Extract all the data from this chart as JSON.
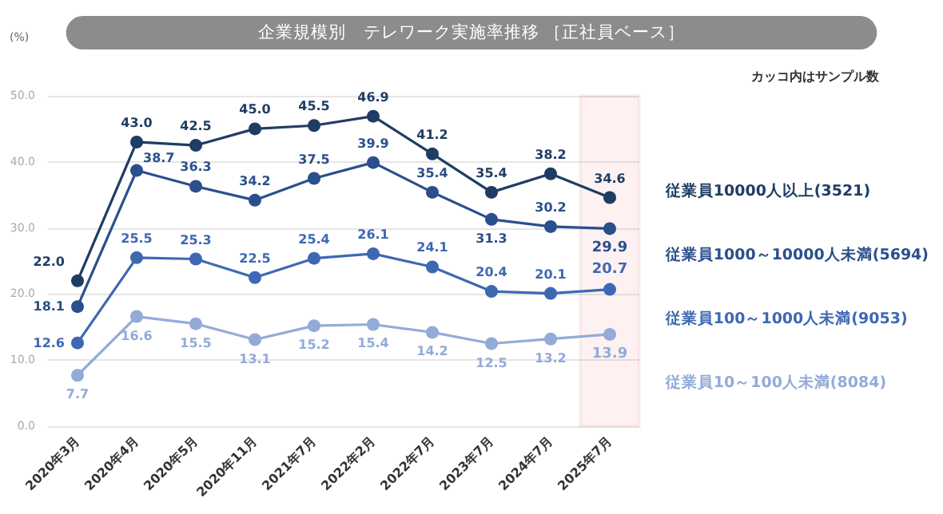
{
  "chart_data": {
    "type": "line",
    "title": "企業規模別　テレワーク実施率推移 ［正社員ベース］",
    "ylabel": "(%)",
    "annotations": [
      "カッコ内はサンプル数"
    ],
    "categories": [
      "2020年3月",
      "2020年4月",
      "2020年5月",
      "2020年11月",
      "2021年7月",
      "2022年2月",
      "2022年7月",
      "2023年7月",
      "2024年7月",
      "2025年7月"
    ],
    "series": [
      {
        "name": "従業員10000人以上(3521)",
        "color": "#1f3d63",
        "values": [
          22.0,
          43.0,
          42.5,
          45.0,
          45.5,
          46.9,
          41.2,
          35.4,
          38.2,
          34.6
        ],
        "value_labels": [
          "22.0",
          "43.0",
          "42.5",
          "45.0",
          "45.5",
          "46.9",
          "41.2",
          "35.4",
          "38.2",
          "34.6"
        ]
      },
      {
        "name": "従業員1000～10000人未満(5694)",
        "color": "#2b4f8c",
        "values": [
          18.1,
          38.7,
          36.3,
          34.2,
          37.5,
          39.9,
          35.4,
          31.3,
          30.2,
          29.9
        ],
        "value_labels": [
          "18.1",
          "38.7",
          "36.3",
          "34.2",
          "37.5",
          "39.9",
          "35.4",
          "31.3",
          "30.2",
          "29.9"
        ]
      },
      {
        "name": "従業員100～1000人未満(9053)",
        "color": "#3e68b2",
        "values": [
          12.6,
          25.5,
          25.3,
          22.5,
          25.4,
          26.1,
          24.1,
          20.4,
          20.1,
          20.7
        ],
        "value_labels": [
          "12.6",
          "25.5",
          "25.3",
          "22.5",
          "25.4",
          "26.1",
          "24.1",
          "20.4",
          "20.1",
          "20.7"
        ]
      },
      {
        "name": "従業員10～100人未満(8084)",
        "color": "#93abd9",
        "values": [
          7.7,
          16.6,
          15.5,
          13.1,
          15.2,
          15.4,
          14.2,
          12.5,
          13.2,
          13.9
        ],
        "value_labels": [
          "7.7",
          "16.6",
          "15.5",
          "13.1",
          "15.2",
          "15.4",
          "14.2",
          "12.5",
          "13.2",
          "13.9"
        ]
      }
    ],
    "ylim": [
      0,
      50
    ],
    "yticks": [
      {
        "value": 0,
        "label": "0.0"
      },
      {
        "value": 10,
        "label": "10.0"
      },
      {
        "value": 20,
        "label": "20.0"
      },
      {
        "value": 30,
        "label": "30.0"
      },
      {
        "value": 40,
        "label": "40.0"
      },
      {
        "value": 50,
        "label": "50.0"
      }
    ],
    "bands": [
      {
        "axis": "x",
        "from": "2025年7月",
        "to": "2025年7月",
        "color": "#e8505f"
      }
    ],
    "grid": "y",
    "legend": "right",
    "marker": "circle",
    "line_style": "solid"
  }
}
